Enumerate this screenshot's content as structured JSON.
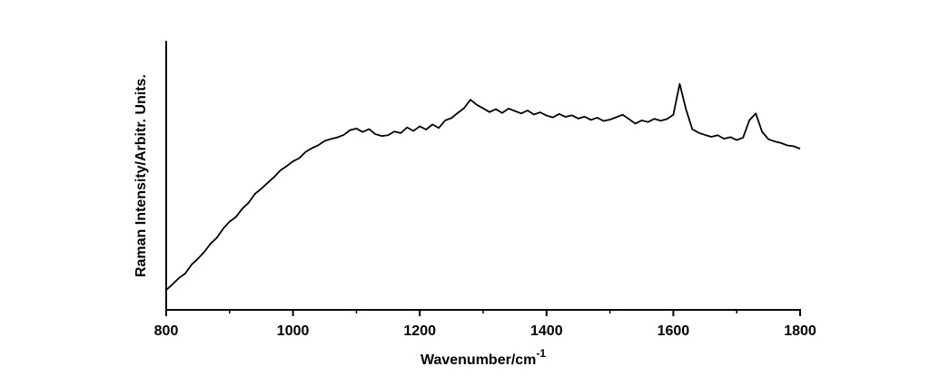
{
  "chart_data": {
    "type": "line",
    "x_label": "Wavenumber/cm",
    "x_label_superscript": "-1",
    "y_label": "Raman Intensity/Arbitr. Units.",
    "xlim": [
      800,
      1800
    ],
    "xticks": [
      800,
      1000,
      1200,
      1400,
      1600,
      1800
    ],
    "xminorticks": [
      900,
      1100,
      1300,
      1500,
      1700
    ],
    "ylim": [
      0,
      100
    ],
    "x": [
      800,
      810,
      820,
      830,
      840,
      850,
      860,
      870,
      880,
      890,
      900,
      910,
      920,
      930,
      940,
      950,
      960,
      970,
      980,
      990,
      1000,
      1010,
      1020,
      1030,
      1040,
      1050,
      1060,
      1070,
      1080,
      1090,
      1100,
      1110,
      1120,
      1130,
      1140,
      1150,
      1160,
      1170,
      1180,
      1190,
      1200,
      1210,
      1220,
      1230,
      1240,
      1250,
      1260,
      1270,
      1280,
      1290,
      1300,
      1310,
      1320,
      1330,
      1340,
      1350,
      1360,
      1370,
      1380,
      1390,
      1400,
      1410,
      1420,
      1430,
      1440,
      1450,
      1460,
      1470,
      1480,
      1490,
      1500,
      1510,
      1520,
      1530,
      1540,
      1550,
      1560,
      1570,
      1580,
      1590,
      1600,
      1610,
      1620,
      1630,
      1640,
      1650,
      1660,
      1670,
      1680,
      1690,
      1700,
      1710,
      1720,
      1730,
      1740,
      1750,
      1760,
      1770,
      1780,
      1790,
      1800
    ],
    "series": [
      {
        "color": "#000000",
        "values": [
          7.4,
          9.5,
          11.8,
          13.5,
          16.8,
          19.0,
          21.5,
          24.6,
          26.8,
          30.2,
          32.8,
          34.5,
          37.6,
          39.8,
          43.1,
          45.0,
          47.2,
          49.3,
          51.8,
          53.4,
          55.2,
          56.4,
          58.7,
          60.1,
          61.2,
          62.8,
          63.5,
          64.1,
          65.0,
          66.8,
          67.4,
          66.1,
          67.2,
          65.3,
          64.6,
          64.9,
          66.3,
          65.7,
          67.8,
          66.5,
          68.2,
          67.0,
          68.9,
          67.6,
          70.4,
          71.3,
          73.2,
          75.0,
          78.1,
          76.2,
          74.9,
          73.5,
          74.6,
          73.2,
          74.8,
          73.9,
          73.0,
          74.1,
          72.6,
          73.4,
          72.2,
          71.5,
          72.8,
          71.7,
          72.3,
          71.1,
          71.8,
          70.6,
          71.4,
          70.2,
          70.7,
          71.6,
          72.5,
          70.9,
          69.2,
          70.4,
          69.8,
          71.0,
          70.3,
          70.9,
          72.5,
          84.0,
          74.5,
          67.1,
          65.8,
          65.0,
          64.3,
          64.9,
          63.6,
          64.2,
          63.1,
          64.0,
          70.5,
          73.0,
          66.2,
          63.4,
          62.6,
          62.0,
          61.1,
          60.8,
          59.9
        ]
      }
    ]
  }
}
